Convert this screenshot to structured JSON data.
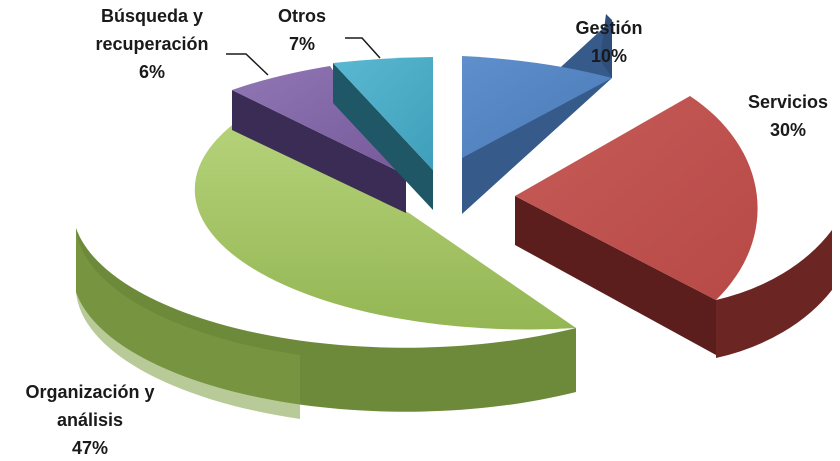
{
  "chart_data": {
    "type": "pie",
    "title": "",
    "slices": [
      {
        "label": "Gestión",
        "value": 10,
        "value_label": "10%",
        "color": "#4F81BD"
      },
      {
        "label": "Servicios",
        "value": 30,
        "value_label": "30%",
        "color": "#C0504D"
      },
      {
        "label": "Organización y análisis",
        "value": 47,
        "value_label": "47%",
        "color": "#9BBB59"
      },
      {
        "label": "Búsqueda y recuperación",
        "value": 6,
        "value_label": "6%",
        "color": "#8064A2"
      },
      {
        "label": "Otros",
        "value": 7,
        "value_label": "7%",
        "color": "#4BACC6"
      }
    ],
    "label_lines": [
      "Búsqueda y",
      "recuperación",
      "Organización y",
      "análisis"
    ],
    "legend": "none",
    "style": "3d-exploded"
  }
}
